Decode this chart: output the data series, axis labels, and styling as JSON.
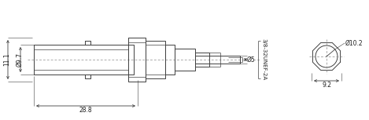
{
  "bg_color": "#ffffff",
  "line_color": "#404040",
  "dim_color": "#404040",
  "text_color": "#202020",
  "fig_width": 4.69,
  "fig_height": 1.53,
  "dpi": 100,
  "annotations": {
    "dim_11_1": "11.1",
    "dim_9_7": "Ø9.7",
    "dim_28_8": "28.8",
    "dim_5": "Ø5",
    "dim_thread": "3/8-32UNEF-2A",
    "dim_10_2": "Ø10.2",
    "dim_9_2": "9.2"
  }
}
